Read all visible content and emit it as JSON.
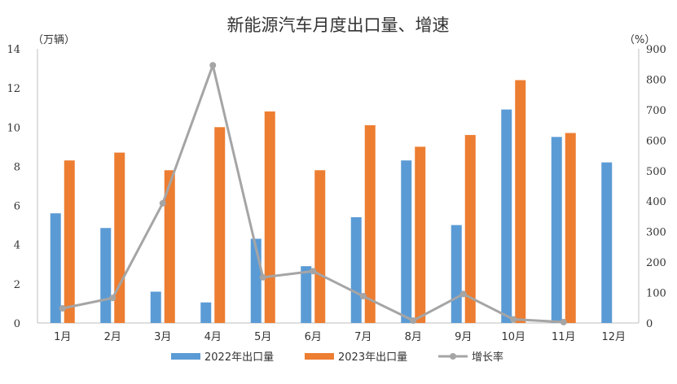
{
  "chart_data": {
    "type": "bar",
    "title": "新能源汽车月度出口量、增速",
    "y_left_unit": "（万辆）",
    "y_right_unit": "（%）",
    "categories": [
      "1月",
      "2月",
      "3月",
      "4月",
      "5月",
      "6月",
      "7月",
      "8月",
      "9月",
      "10月",
      "11月",
      "12月"
    ],
    "series": [
      {
        "name": "2022年出口量",
        "type": "bar",
        "axis": "left",
        "color": "#5B9BD5",
        "values": [
          5.6,
          4.85,
          1.6,
          1.05,
          4.3,
          2.9,
          5.4,
          8.3,
          5.0,
          10.9,
          9.5,
          8.2
        ]
      },
      {
        "name": "2023年出口量",
        "type": "bar",
        "axis": "left",
        "color": "#ED7D31",
        "values": [
          8.3,
          8.7,
          7.8,
          10.0,
          10.8,
          7.8,
          10.1,
          9.0,
          9.6,
          12.4,
          9.7,
          null
        ]
      },
      {
        "name": "增长率",
        "type": "line",
        "axis": "right",
        "color": "#A5A5A5",
        "values": [
          48,
          82,
          393,
          846,
          150,
          170,
          88,
          8,
          95,
          12,
          3,
          null
        ]
      }
    ],
    "y_left": {
      "min": 0,
      "max": 14,
      "step": 2,
      "ticks": [
        "0",
        "2",
        "4",
        "6",
        "8",
        "10",
        "12",
        "14"
      ]
    },
    "y_right": {
      "min": 0,
      "max": 900,
      "step": 100,
      "ticks": [
        "0",
        "100",
        "200",
        "300",
        "400",
        "500",
        "600",
        "700",
        "800",
        "900"
      ]
    },
    "grid": false,
    "legend_position": "bottom"
  }
}
